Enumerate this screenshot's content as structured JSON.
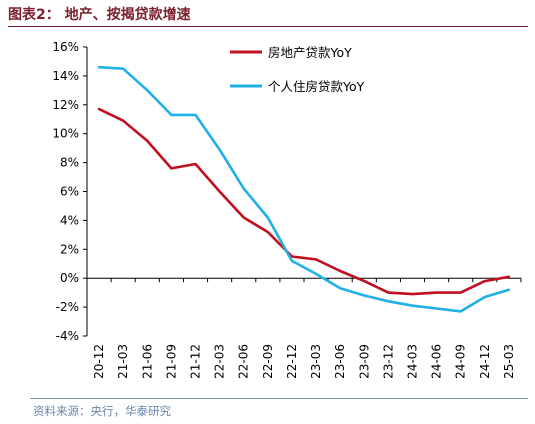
{
  "figure": {
    "title": "图表2： 地产、按揭贷款增速",
    "source": "资料来源：央行，华泰研究"
  },
  "chart_data": {
    "type": "line",
    "title": "图表2： 地产、按揭贷款增速",
    "xlabel": "",
    "ylabel": "",
    "x": [
      "20-12",
      "21-03",
      "21-06",
      "21-09",
      "21-12",
      "22-03",
      "22-06",
      "22-09",
      "22-12",
      "23-03",
      "23-06",
      "23-09",
      "23-12",
      "24-03",
      "24-06",
      "24-09",
      "24-12",
      "25-03"
    ],
    "y_unit": "%",
    "ylim": [
      -4,
      16
    ],
    "yticks": [
      -4,
      -2,
      0,
      2,
      4,
      6,
      8,
      10,
      12,
      14,
      16
    ],
    "ytick_labels": [
      "-4%",
      "-2%",
      "0%",
      "2%",
      "4%",
      "6%",
      "8%",
      "10%",
      "12%",
      "14%",
      "16%"
    ],
    "grid": false,
    "legend_position": "top-right",
    "series": [
      {
        "name": "房地产贷款YoY",
        "color": "#c0101f",
        "values": [
          11.7,
          10.9,
          9.5,
          7.6,
          7.9,
          6.0,
          4.2,
          3.2,
          1.5,
          1.3,
          0.5,
          -0.2,
          -1.0,
          -1.1,
          -1.0,
          -1.0,
          -0.2,
          0.1
        ]
      },
      {
        "name": "个人住房贷款YoY",
        "color": "#1fb0e8",
        "values": [
          14.6,
          14.5,
          13.0,
          11.3,
          11.3,
          8.9,
          6.2,
          4.2,
          1.2,
          0.3,
          -0.7,
          -1.2,
          -1.6,
          -1.9,
          -2.1,
          -2.3,
          -1.3,
          -0.8
        ]
      }
    ]
  }
}
